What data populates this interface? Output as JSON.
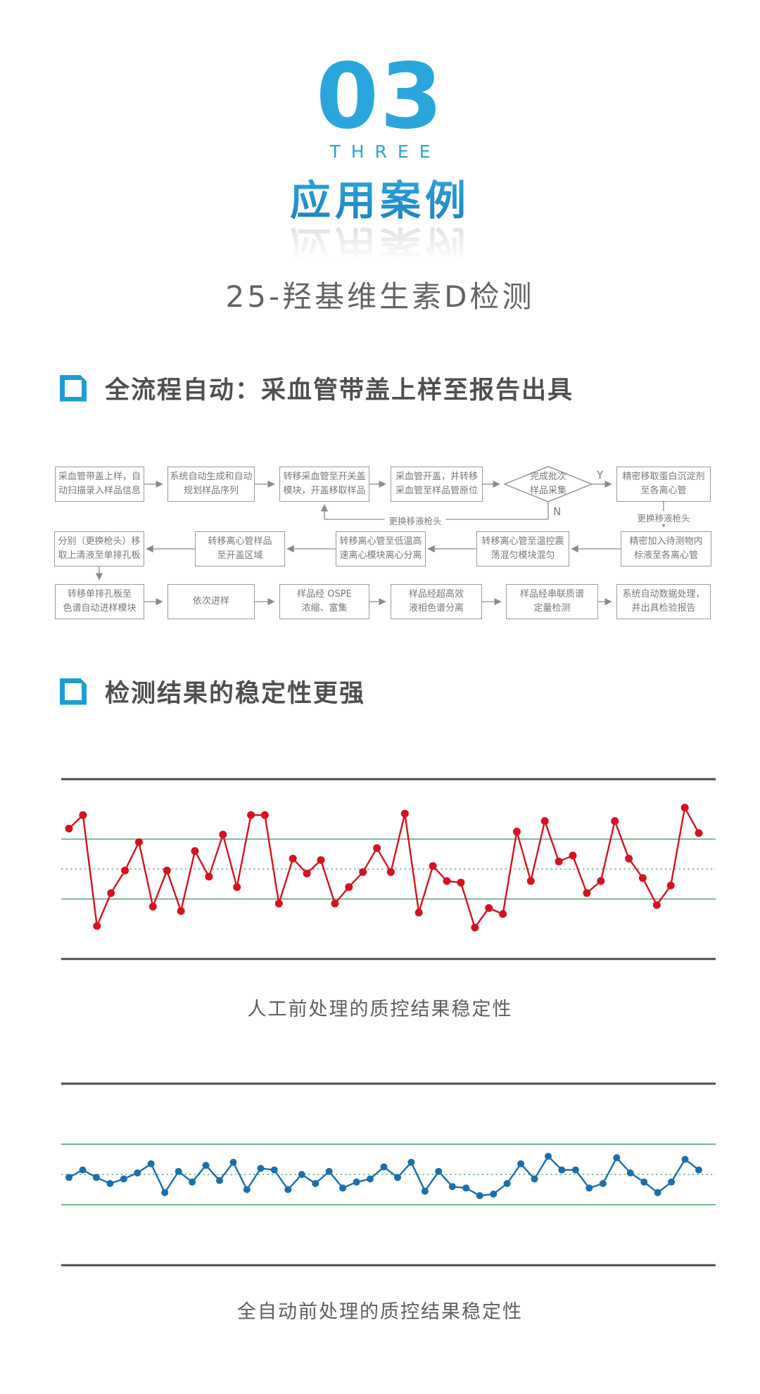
{
  "header": {
    "chapter_number": "03",
    "chapter_word": "THREE",
    "chapter_title": "应用案例",
    "subtitle": "25-羟基维生素D检测"
  },
  "sections": {
    "workflow_title": "全流程自动：采血管带盖上样至报告出具",
    "stability_title": "检测结果的稳定性更强"
  },
  "colors": {
    "accent_cyan": "#29a7dd",
    "icon_blue": "#1b9fd3",
    "flow_gray": "#8a8a8a",
    "manual_red": "#d6121f",
    "auto_blue": "#1a6fae",
    "limit_green": "#44a06c"
  },
  "flowchart": {
    "row1": [
      "采血管带盖上样，自\n动扫描录入样品信息",
      "系统自动生成和自动\n规划样品序列",
      "转移采血管至开关盖\n模块，开盖移取样品",
      "采血管开盖，并转移\n采血管至样品管原位",
      "完成批次\n样品采集",
      "精密移取蛋白沉淀剂\n至各离心管"
    ],
    "row2": [
      "分别（更换枪头）移\n取上清液至单排孔板",
      "转移离心管样品\n至开盖区域",
      "转移离心管至低温高\n速离心模块离心分离",
      "转移离心管至温控震\n荡混匀模块混匀",
      "精密加入待测物内\n标液至各离心管"
    ],
    "row3": [
      "转移单排孔板至\n色谱自动进样模块",
      "依次进样",
      "样品经 OSPE\n浓缩、富集",
      "样品经超高效\n液相色谱分离",
      "样品经串联质谱\n定量检测",
      "系统自动数据处理，\n并出具检验报告"
    ],
    "yes_label": "Y",
    "no_label": "N",
    "loop_label": "更换移液枪头",
    "tip_change_label": "更换移液枪头"
  },
  "chart_data": [
    {
      "type": "line",
      "title": "人工前处理的质控结果稳定性",
      "unit": "sd",
      "center_line": 0,
      "upper_control_limit": 2,
      "lower_control_limit": -2,
      "ylim": [
        -6,
        6
      ],
      "grid": false,
      "line_color": "#d6121f",
      "point_color": "#d6121f",
      "border_color": "#4d4d4d",
      "limit_line_color": "#44a06c",
      "center_line_color": "#69b08c",
      "values": [
        2.7,
        3.6,
        -3.8,
        -1.6,
        -0.1,
        1.8,
        -2.5,
        -0.1,
        -2.8,
        1.2,
        -0.5,
        2.3,
        -1.2,
        3.6,
        3.6,
        -2.3,
        0.7,
        -0.3,
        0.6,
        -2.3,
        -1.2,
        -0.2,
        1.4,
        -0.2,
        3.7,
        -2.9,
        0.2,
        -0.8,
        -0.9,
        -3.9,
        -2.6,
        -3.0,
        2.5,
        -0.8,
        3.2,
        0.5,
        0.9,
        -1.6,
        -0.8,
        3.2,
        0.7,
        -0.6,
        -2.4,
        -1.1,
        4.1,
        2.4
      ]
    },
    {
      "type": "line",
      "title": "全自动前处理的质控结果稳定性",
      "unit": "sd",
      "center_line": 0,
      "upper_control_limit": 2,
      "lower_control_limit": -2,
      "ylim": [
        -6,
        6
      ],
      "grid": false,
      "line_color": "#1a6fae",
      "point_color": "#1a6fae",
      "border_color": "#4d4d4d",
      "limit_line_color": "#44a06c",
      "center_line_color": "#69b08c",
      "values": [
        -0.2,
        0.3,
        -0.2,
        -0.6,
        -0.3,
        0.1,
        0.7,
        -1.2,
        0.2,
        -0.5,
        0.6,
        -0.4,
        0.8,
        -1.0,
        0.4,
        0.3,
        -1.0,
        0.0,
        -0.6,
        0.2,
        -0.9,
        -0.5,
        -0.3,
        0.5,
        -0.2,
        0.8,
        -1.1,
        0.2,
        -0.8,
        -0.9,
        -1.4,
        -1.3,
        -0.6,
        0.7,
        -0.3,
        1.2,
        0.3,
        0.3,
        -0.9,
        -0.6,
        1.1,
        0.1,
        -0.5,
        -1.2,
        -0.5,
        1.0,
        0.3
      ]
    }
  ]
}
